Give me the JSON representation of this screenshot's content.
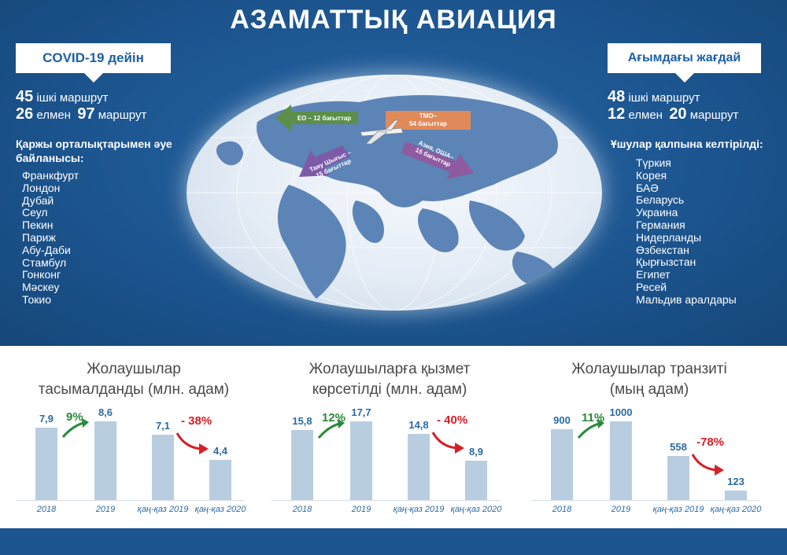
{
  "title": "АЗАМАТТЫҚ АВИАЦИЯ",
  "before": {
    "heading": "COVID-19 дейін",
    "domestic_num": "45",
    "domestic_label": "ішкі маршрут",
    "countries_num": "26",
    "countries_label": "елмен",
    "routes_num": "97",
    "routes_label": "маршрут",
    "hubs_title": "Қаржы орталықтарымен әуе байланысы:",
    "hubs": [
      "Франкфурт",
      "Лондон",
      "Дубай",
      "Сеул",
      "Пекин",
      "Париж",
      "Абу-Даби",
      "Стамбул",
      "Гонконг",
      "Мәскеу",
      "Токио"
    ]
  },
  "current": {
    "heading": "Ағымдағы жағдай",
    "domestic_num": "48",
    "domestic_label": "ішкі маршрут",
    "countries_num": "12",
    "countries_label": "елмен",
    "routes_num": "20",
    "routes_label": "маршрут",
    "flights_title": "Ұшулар қалпына келтірілді:",
    "countries": [
      "Түркия",
      "Корея",
      "БАӘ",
      "Беларусь",
      "Украина",
      "Германия",
      "Нидерланды",
      "Өзбекстан",
      "Қырғызстан",
      "Египет",
      "Ресей",
      "Мальдив аралдары"
    ]
  },
  "map_arrows": {
    "eu": "ЕО – 12 бағыттар",
    "cis": "ТМО–\n54 бағыттар",
    "mideast": "Таяу Шығыс – 15 бағыттар",
    "asia": "Азия, ОША–\n15 бағыттар"
  },
  "colors": {
    "primary": "#1c558f",
    "bar": "#b9cde1",
    "value": "#2c6aa0",
    "growth": "#2a8a3b",
    "decline": "#d61f26",
    "arrow_eu": "#5b8f4a",
    "arrow_cis": "#e08a5a",
    "arrow_mideast": "#7d5aa8",
    "arrow_asia": "#8e5aa0"
  },
  "chart_data": [
    {
      "type": "bar",
      "title": "Жолаушылар\nтасымалданды (млн. адам)",
      "categories": [
        "2018",
        "2019",
        "қаң-қаз 2019",
        "қаң-қаз 2020"
      ],
      "values": [
        7.9,
        8.6,
        7.1,
        4.4
      ],
      "value_labels": [
        "7,9",
        "8,6",
        "7,1",
        "4,4"
      ],
      "changes": [
        "9%",
        "- 38%"
      ]
    },
    {
      "type": "bar",
      "title": "Жолаушыларға қызмет\nкөрсетілді (млн. адам)",
      "categories": [
        "2018",
        "2019",
        "қаң-қаз 2019",
        "қаң-қаз 2020"
      ],
      "values": [
        15.8,
        17.7,
        14.8,
        8.9
      ],
      "value_labels": [
        "15,8",
        "17,7",
        "14,8",
        "8,9"
      ],
      "changes": [
        "12%",
        "- 40%"
      ]
    },
    {
      "type": "bar",
      "title": "Жолаушылар транзиті\n(мың адам)",
      "categories": [
        "2018",
        "2019",
        "қаң-қаз 2019",
        "қаң-қаз 2020"
      ],
      "values": [
        900,
        1000,
        558,
        123
      ],
      "value_labels": [
        "900",
        "1000",
        "558",
        "123"
      ],
      "changes": [
        "11%",
        "-78%"
      ]
    }
  ]
}
